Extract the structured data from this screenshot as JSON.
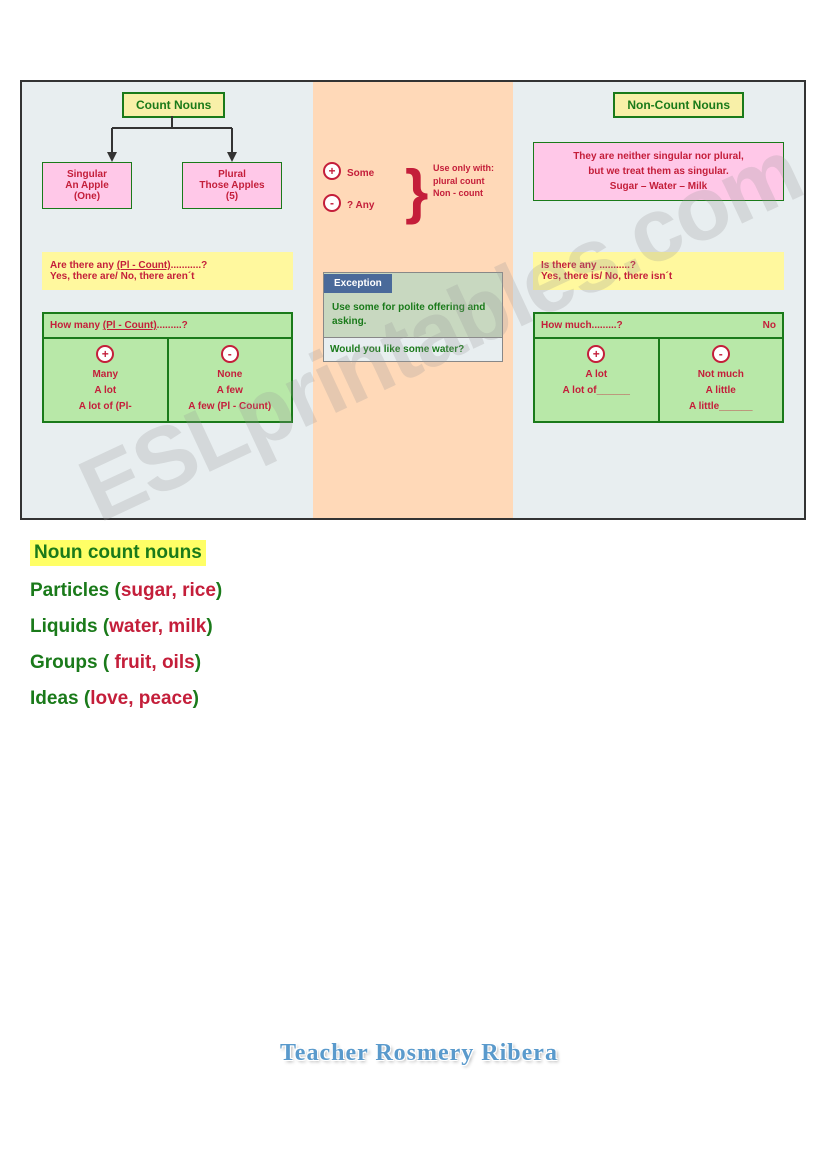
{
  "titles": {
    "count": "Count Nouns",
    "noncount": "Non-Count Nouns"
  },
  "left": {
    "singular": {
      "l1": "Singular",
      "l2": "An Apple",
      "l3": "(One)"
    },
    "plural": {
      "l1": "Plural",
      "l2": "Those Apples",
      "l3": "(5)"
    },
    "yellow": {
      "l1_a": "Are there any ",
      "l1_b": "(Pl - Count)",
      "l1_c": "...........?",
      "l2": "Yes, there are/ No, there aren´t"
    },
    "table": {
      "head_a": "How many ",
      "head_b": "(Pl - Count)",
      "head_c": ".........?",
      "pos": {
        "l1": "Many",
        "l2": "A lot",
        "l3": "A lot of (Pl-"
      },
      "neg": {
        "l1": "None",
        "l2": "A few",
        "l3": "A few (Pl - Count)"
      }
    }
  },
  "mid": {
    "some": "Some",
    "any": "? Any",
    "use": "Use only with: plural count Non - count",
    "exception_label": "Exception",
    "exception_body_a": "Use ",
    "exception_body_b": "some",
    "exception_body_c": " for polite offering and asking.",
    "exception_foot": "Would you like some water?"
  },
  "right": {
    "pink": {
      "l1": "They are neither singular nor plural,",
      "l2": "but we treat them as singular.",
      "l3": "Sugar – Water – Milk"
    },
    "yellow": {
      "l1": "Is there any ...........?",
      "l2": "Yes, there is/ No, there isn´t"
    },
    "table": {
      "head_l": "How much.........?",
      "head_r": "No",
      "pos": {
        "l1": "A lot",
        "l2": "A lot of______"
      },
      "neg": {
        "l1": "Not much",
        "l2": "A little",
        "l3": "A little______"
      }
    }
  },
  "bottom": {
    "title": "Noun count nouns",
    "rows": [
      {
        "cat": "Particles (",
        "ex": "sugar, rice",
        "close": ")"
      },
      {
        "cat": "Liquids (",
        "ex": "water, milk",
        "close": ")"
      },
      {
        "cat": "Groups ( ",
        "ex": "fruit, oils",
        "close": ")"
      },
      {
        "cat": "Ideas (",
        "ex": "love, peace",
        "close": ")"
      }
    ]
  },
  "teacher": "Teacher Rosmery Ribera",
  "watermark": "ESLprintables.com",
  "colors": {
    "green_dark": "#1a7a1a",
    "red": "#c41e3a",
    "pink_bg": "#ffc8e8",
    "yellow_bg": "#fff89e",
    "green_bg": "#b8e8a8",
    "peach_bg": "#ffd9b8",
    "blue_bg": "#e8eef0"
  },
  "icons": {
    "plus": "+",
    "minus": "-"
  }
}
